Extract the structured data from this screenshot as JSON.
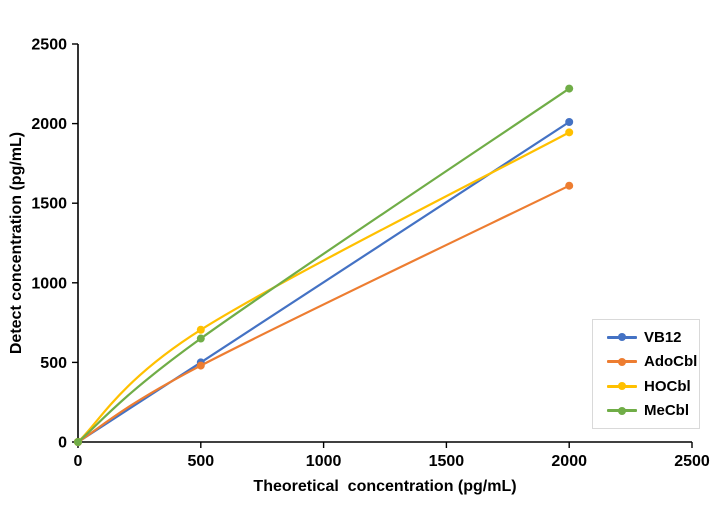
{
  "figure": {
    "background": "#FFFFFF",
    "axis_color": "#000000",
    "legend_border_color": "#D9D9D9"
  },
  "chart_data": {
    "type": "line",
    "title": "",
    "xlabel": "Theoretical  concentration (pg/mL)",
    "ylabel": "Detect concentration (pg/mL)",
    "x": [
      0,
      500,
      2000
    ],
    "series": [
      {
        "name": "VB12",
        "color": "#4472C4",
        "values": [
          0,
          500,
          2010
        ]
      },
      {
        "name": "AdoCbl",
        "color": "#ED7D31",
        "values": [
          0,
          480,
          1610
        ]
      },
      {
        "name": "HOCbl",
        "color": "#FFC000",
        "values": [
          0,
          705,
          1945
        ]
      },
      {
        "name": "MeCbl",
        "color": "#70AD47",
        "values": [
          0,
          650,
          2220
        ]
      }
    ],
    "xlim": [
      0,
      2500
    ],
    "ylim": [
      0,
      2500
    ],
    "xticks": [
      0,
      500,
      1000,
      1500,
      2000,
      2500
    ],
    "yticks": [
      0,
      500,
      1000,
      1500,
      2000,
      2500
    ],
    "grid": false,
    "line_style": "smooth",
    "marker": "circle",
    "legend_position": "inside-right-bottom",
    "legend_entries": [
      "VB12",
      "AdoCbl",
      "HOCbl",
      "MeCbl"
    ]
  }
}
